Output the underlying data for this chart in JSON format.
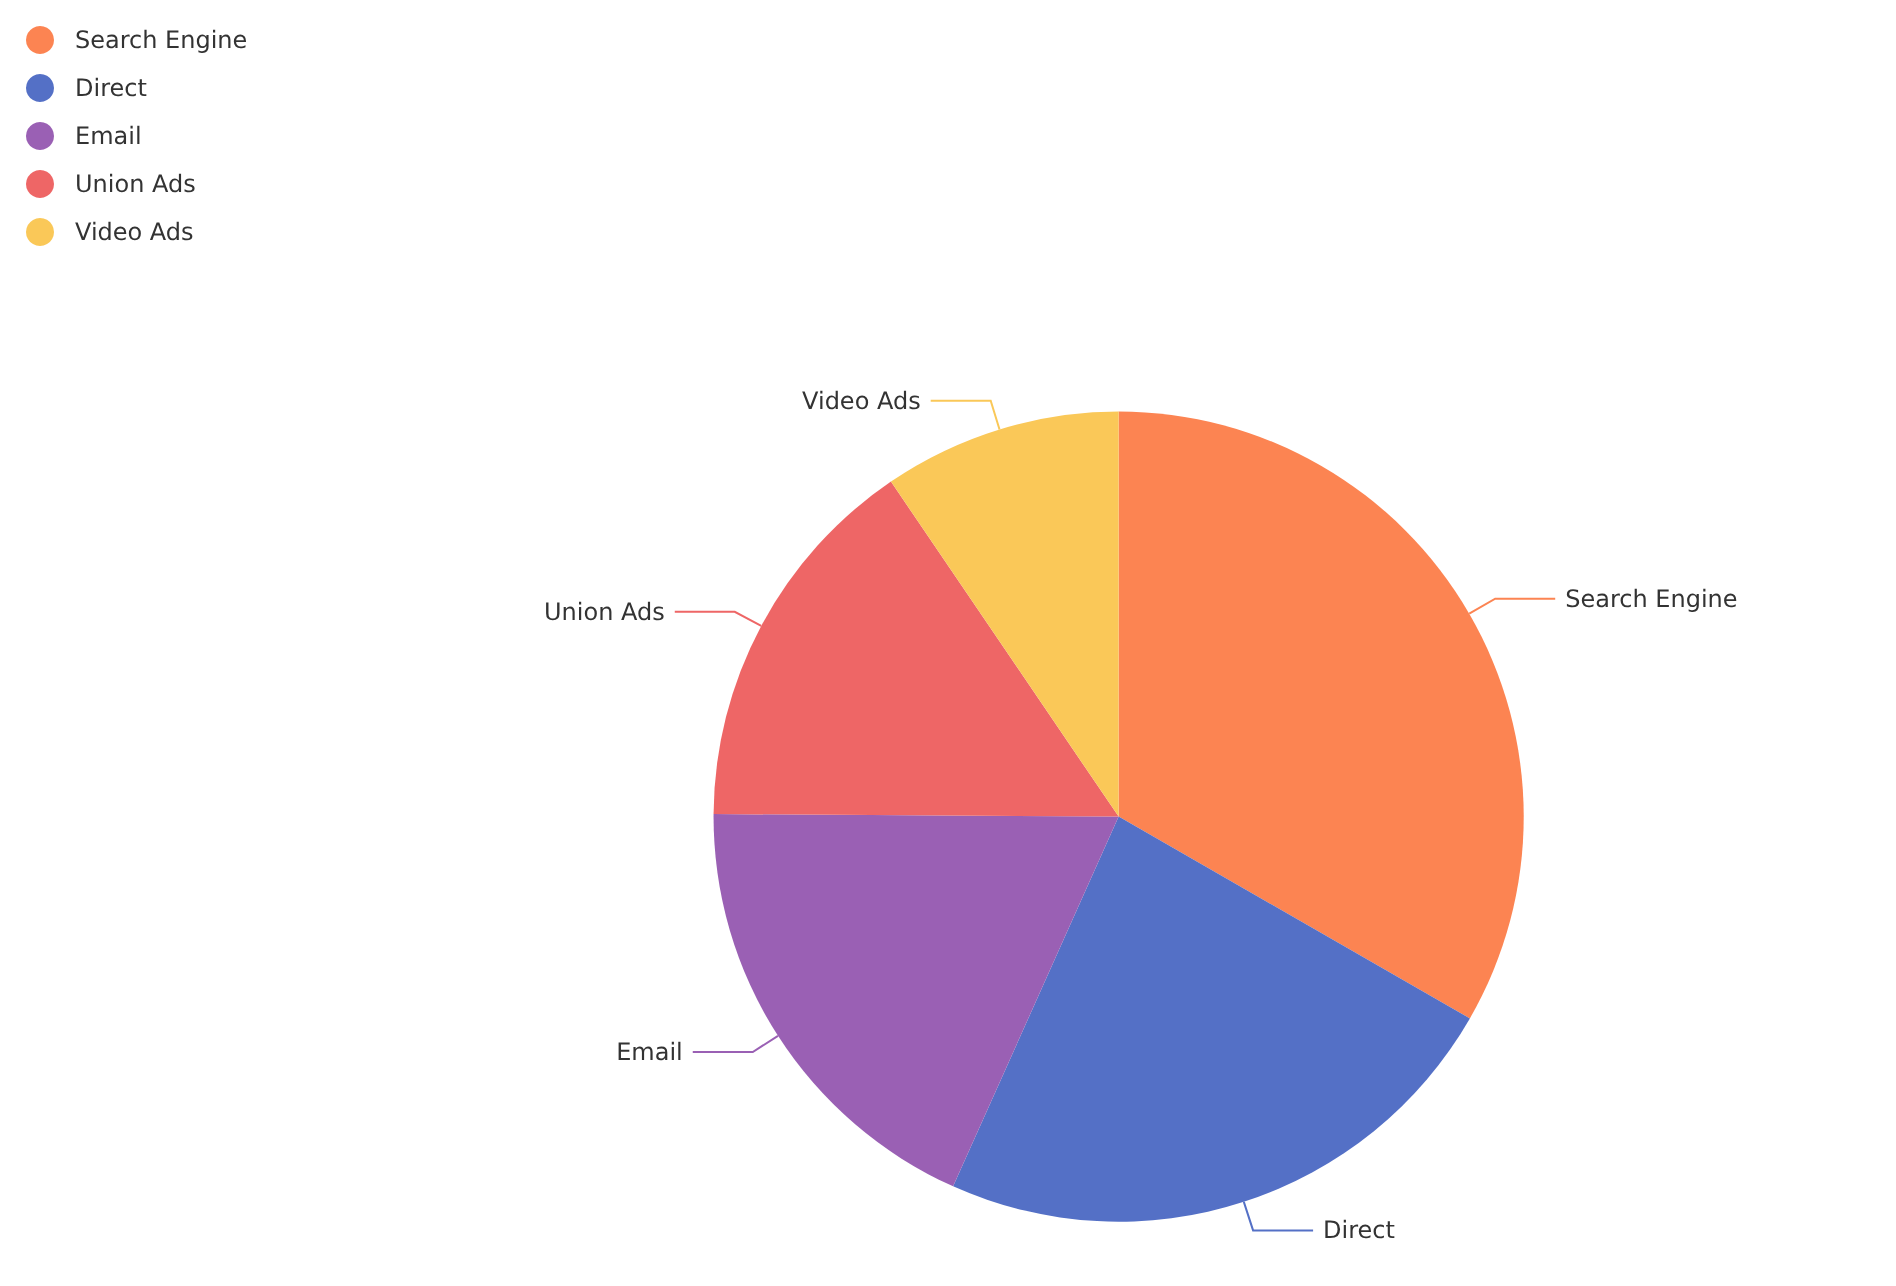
{
  "chart_data": {
    "type": "pie",
    "categories": [
      "Search Engine",
      "Direct",
      "Email",
      "Union Ads",
      "Video Ads"
    ],
    "values": [
      33.3,
      23.4,
      18.4,
      15.4,
      9.5
    ],
    "colors": [
      "#fc8452",
      "#5470c6",
      "#9a60b4",
      "#ee6666",
      "#fac858"
    ],
    "legend": "top left"
  }
}
